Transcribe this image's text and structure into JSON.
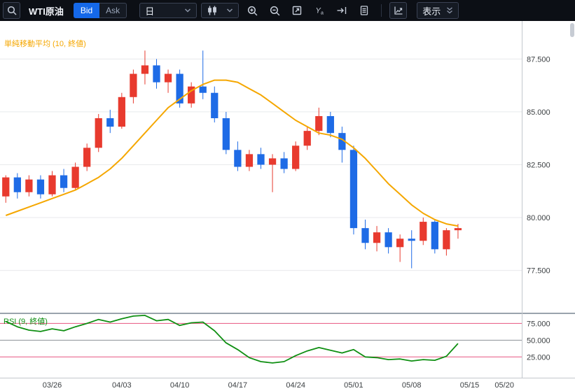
{
  "toolbar": {
    "symbol": "WTI原油",
    "bid": "Bid",
    "ask": "Ask",
    "timeframe": "日",
    "display": "表示",
    "icons": [
      "search-icon",
      "candlestick-icon",
      "chevron-down-icon",
      "zoom-in-icon",
      "zoom-out-icon",
      "fit-chart-icon",
      "y-axis-scale-icon",
      "go-to-latest-icon",
      "notes-icon",
      "indicator-chart-icon",
      "double-chevron-down-icon"
    ]
  },
  "chart_data": {
    "type": "candlestick",
    "symbol": "WTI原油",
    "interval": "日",
    "total_slots": 45,
    "x_labels": [
      {
        "slot": 4,
        "label": "03/26"
      },
      {
        "slot": 10,
        "label": "04/03"
      },
      {
        "slot": 15,
        "label": "04/10"
      },
      {
        "slot": 20,
        "label": "04/17"
      },
      {
        "slot": 25,
        "label": "04/24"
      },
      {
        "slot": 30,
        "label": "05/01"
      },
      {
        "slot": 35,
        "label": "05/08"
      },
      {
        "slot": 40,
        "label": "05/15"
      },
      {
        "slot": 43,
        "label": "05/20"
      }
    ],
    "price_pane": {
      "label": "単純移動平均 (10, 終値)",
      "ylim": [
        75.5,
        89.3
      ],
      "ticks": [
        87.5,
        85.0,
        82.5,
        80.0,
        77.5
      ],
      "candles": [
        {
          "date": "03/20",
          "o": 81.0,
          "h": 82.0,
          "l": 80.7,
          "c": 81.9
        },
        {
          "date": "03/21",
          "o": 81.9,
          "h": 82.1,
          "l": 80.9,
          "c": 81.2
        },
        {
          "date": "03/22",
          "o": 81.2,
          "h": 82.0,
          "l": 81.0,
          "c": 81.8
        },
        {
          "date": "03/25",
          "o": 81.8,
          "h": 82.0,
          "l": 80.9,
          "c": 81.1
        },
        {
          "date": "03/26",
          "o": 81.1,
          "h": 82.2,
          "l": 81.0,
          "c": 82.0
        },
        {
          "date": "03/27",
          "o": 82.0,
          "h": 82.3,
          "l": 81.2,
          "c": 81.4
        },
        {
          "date": "03/28",
          "o": 81.4,
          "h": 82.6,
          "l": 81.3,
          "c": 82.4
        },
        {
          "date": "03/29",
          "o": 82.4,
          "h": 83.5,
          "l": 82.2,
          "c": 83.3
        },
        {
          "date": "04/01",
          "o": 83.3,
          "h": 84.9,
          "l": 83.1,
          "c": 84.7
        },
        {
          "date": "04/02",
          "o": 84.7,
          "h": 85.1,
          "l": 84.0,
          "c": 84.3
        },
        {
          "date": "04/03",
          "o": 84.3,
          "h": 85.9,
          "l": 84.2,
          "c": 85.7
        },
        {
          "date": "04/04",
          "o": 85.7,
          "h": 87.0,
          "l": 85.4,
          "c": 86.8
        },
        {
          "date": "04/05",
          "o": 86.8,
          "h": 87.9,
          "l": 86.3,
          "c": 87.2
        },
        {
          "date": "04/08",
          "o": 87.2,
          "h": 87.5,
          "l": 86.1,
          "c": 86.4
        },
        {
          "date": "04/09",
          "o": 86.4,
          "h": 87.0,
          "l": 85.9,
          "c": 86.8
        },
        {
          "date": "04/10",
          "o": 86.8,
          "h": 87.0,
          "l": 85.2,
          "c": 85.4
        },
        {
          "date": "04/11",
          "o": 85.4,
          "h": 86.4,
          "l": 85.2,
          "c": 86.2
        },
        {
          "date": "04/12",
          "o": 86.2,
          "h": 87.9,
          "l": 85.6,
          "c": 85.9
        },
        {
          "date": "04/15",
          "o": 85.9,
          "h": 86.2,
          "l": 84.5,
          "c": 84.7
        },
        {
          "date": "04/16",
          "o": 84.7,
          "h": 85.0,
          "l": 83.0,
          "c": 83.2
        },
        {
          "date": "04/17",
          "o": 83.2,
          "h": 83.6,
          "l": 82.2,
          "c": 82.4
        },
        {
          "date": "04/18",
          "o": 82.4,
          "h": 83.2,
          "l": 82.2,
          "c": 83.0
        },
        {
          "date": "04/19",
          "o": 83.0,
          "h": 83.3,
          "l": 82.3,
          "c": 82.5
        },
        {
          "date": "04/22",
          "o": 82.5,
          "h": 83.0,
          "l": 81.2,
          "c": 82.8
        },
        {
          "date": "04/23",
          "o": 82.8,
          "h": 83.1,
          "l": 82.1,
          "c": 82.3
        },
        {
          "date": "04/24",
          "o": 82.3,
          "h": 83.6,
          "l": 82.2,
          "c": 83.4
        },
        {
          "date": "04/25",
          "o": 83.4,
          "h": 84.3,
          "l": 83.2,
          "c": 84.1
        },
        {
          "date": "04/26",
          "o": 84.1,
          "h": 85.2,
          "l": 83.9,
          "c": 84.8
        },
        {
          "date": "04/29",
          "o": 84.8,
          "h": 85.0,
          "l": 83.8,
          "c": 84.0
        },
        {
          "date": "04/30",
          "o": 84.0,
          "h": 84.3,
          "l": 82.6,
          "c": 83.2
        },
        {
          "date": "05/01",
          "o": 83.2,
          "h": 83.4,
          "l": 79.2,
          "c": 79.5
        },
        {
          "date": "05/02",
          "o": 79.5,
          "h": 79.9,
          "l": 78.5,
          "c": 78.8
        },
        {
          "date": "05/03",
          "o": 78.8,
          "h": 79.6,
          "l": 78.4,
          "c": 79.3
        },
        {
          "date": "05/06",
          "o": 79.3,
          "h": 79.5,
          "l": 78.3,
          "c": 78.6
        },
        {
          "date": "05/07",
          "o": 78.6,
          "h": 79.2,
          "l": 77.9,
          "c": 79.0
        },
        {
          "date": "05/08",
          "o": 79.0,
          "h": 79.4,
          "l": 77.6,
          "c": 78.9
        },
        {
          "date": "05/09",
          "o": 78.9,
          "h": 80.0,
          "l": 78.7,
          "c": 79.8
        },
        {
          "date": "05/10",
          "o": 79.8,
          "h": 79.9,
          "l": 78.3,
          "c": 78.5
        },
        {
          "date": "05/13",
          "o": 78.5,
          "h": 79.5,
          "l": 78.2,
          "c": 79.4
        },
        {
          "date": "05/14",
          "o": 79.4,
          "h": 79.7,
          "l": 79.0,
          "c": 79.5
        }
      ],
      "sma10": [
        80.1,
        80.3,
        80.5,
        80.7,
        80.9,
        81.1,
        81.3,
        81.6,
        81.9,
        82.3,
        82.8,
        83.4,
        84.0,
        84.6,
        85.2,
        85.6,
        86.0,
        86.3,
        86.5,
        86.5,
        86.4,
        86.1,
        85.8,
        85.4,
        85.0,
        84.6,
        84.3,
        84.0,
        83.9,
        83.7,
        83.3,
        82.8,
        82.2,
        81.6,
        81.1,
        80.6,
        80.2,
        79.9,
        79.7,
        79.6
      ]
    },
    "rsi_pane": {
      "label": "RSI (9, 終値)",
      "ylim": [
        -6,
        89
      ],
      "ticks": [
        75.0,
        50.0,
        25.0
      ],
      "levels": {
        "overbought": 75,
        "middle": 50,
        "oversold": 25
      },
      "values": [
        78,
        70,
        65,
        63,
        67,
        64,
        70,
        75,
        81,
        77,
        82,
        86,
        87,
        79,
        81,
        72,
        76,
        77,
        64,
        46,
        36,
        24,
        18,
        16,
        18,
        27,
        34,
        39,
        35,
        31,
        36,
        25,
        24,
        21,
        22,
        19,
        21,
        20,
        26,
        45
      ]
    },
    "colors": {
      "up": "#e83a2e",
      "down": "#1e6be6",
      "sma": "#f5a700",
      "rsi": "#0f8f12",
      "level_pink": "#e75480",
      "level_gray": "#8b9096",
      "grid": "#e8eaec",
      "axis_text": "#3c4043"
    },
    "grid": true,
    "legend_position": "top-left"
  }
}
